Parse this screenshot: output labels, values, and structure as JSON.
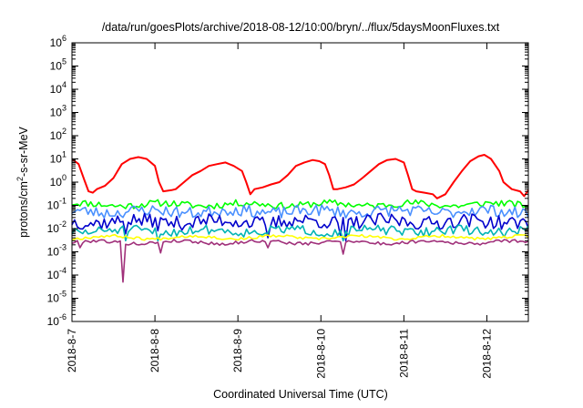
{
  "chart_data": {
    "type": "line",
    "title": "/data/run/goesPlots/archive/2018-08-12/10:00/bryn/../flux/5daysMoonFluxes.txt",
    "xlabel": "Coordinated Universal Time (UTC)",
    "ylabel": "protons/cm²-s-sr-MeV",
    "ylabel_parts": {
      "pre": "protons/cm",
      "sup": "2",
      "post": "-s-sr-MeV"
    },
    "yscale": "log",
    "ylim": [
      1e-06,
      1000000.0
    ],
    "xlim": [
      0,
      5.5
    ],
    "x_units": "days since 2018-8-7",
    "y_ticks": [
      {
        "exp": -6,
        "label": "10",
        "sup": "-6"
      },
      {
        "exp": -5,
        "label": "10",
        "sup": "-5"
      },
      {
        "exp": -4,
        "label": "10",
        "sup": "-4"
      },
      {
        "exp": -3,
        "label": "10",
        "sup": "-3"
      },
      {
        "exp": -2,
        "label": "10",
        "sup": "-2"
      },
      {
        "exp": -1,
        "label": "10",
        "sup": "-1"
      },
      {
        "exp": 0,
        "label": "10",
        "sup": "0"
      },
      {
        "exp": 1,
        "label": "10",
        "sup": "1"
      },
      {
        "exp": 2,
        "label": "10",
        "sup": "2"
      },
      {
        "exp": 3,
        "label": "10",
        "sup": "3"
      },
      {
        "exp": 4,
        "label": "10",
        "sup": "4"
      },
      {
        "exp": 5,
        "label": "10",
        "sup": "5"
      },
      {
        "exp": 6,
        "label": "10",
        "sup": "6"
      }
    ],
    "x_ticks": [
      {
        "x": 0,
        "label": "2018-8-7"
      },
      {
        "x": 1,
        "label": "2018-8-8"
      },
      {
        "x": 2,
        "label": "2018-8-9"
      },
      {
        "x": 3,
        "label": "2018-8-10"
      },
      {
        "x": 4,
        "label": "2018-8-11"
      },
      {
        "x": 5,
        "label": "2018-8-12"
      }
    ],
    "grid": false,
    "legend": "none",
    "series": [
      {
        "color": "#ff0000",
        "points": [
          [
            0,
            10
          ],
          [
            0.08,
            6
          ],
          [
            0.15,
            1.2
          ],
          [
            0.2,
            0.4
          ],
          [
            0.25,
            0.35
          ],
          [
            0.3,
            0.5
          ],
          [
            0.4,
            0.7
          ],
          [
            0.5,
            1.5
          ],
          [
            0.55,
            3
          ],
          [
            0.6,
            6
          ],
          [
            0.7,
            10
          ],
          [
            0.8,
            12
          ],
          [
            0.9,
            10
          ],
          [
            1.0,
            5
          ],
          [
            1.05,
            1
          ],
          [
            1.1,
            0.4
          ],
          [
            1.2,
            0.45
          ],
          [
            1.25,
            0.5
          ],
          [
            1.35,
            1
          ],
          [
            1.45,
            2
          ],
          [
            1.55,
            3
          ],
          [
            1.65,
            5
          ],
          [
            1.75,
            6
          ],
          [
            1.85,
            7
          ],
          [
            1.95,
            5
          ],
          [
            2.05,
            3
          ],
          [
            2.1,
            1
          ],
          [
            2.15,
            0.3
          ],
          [
            2.2,
            0.5
          ],
          [
            2.3,
            0.6
          ],
          [
            2.4,
            0.8
          ],
          [
            2.5,
            1
          ],
          [
            2.6,
            2
          ],
          [
            2.7,
            5
          ],
          [
            2.8,
            7
          ],
          [
            2.9,
            9
          ],
          [
            2.98,
            8
          ],
          [
            3.05,
            6
          ],
          [
            3.1,
            2
          ],
          [
            3.15,
            0.5
          ],
          [
            3.2,
            0.5
          ],
          [
            3.3,
            0.6
          ],
          [
            3.4,
            0.8
          ],
          [
            3.5,
            1.5
          ],
          [
            3.6,
            3
          ],
          [
            3.7,
            6
          ],
          [
            3.8,
            9
          ],
          [
            3.9,
            10
          ],
          [
            4.0,
            7
          ],
          [
            4.05,
            2
          ],
          [
            4.1,
            0.5
          ],
          [
            4.15,
            0.4
          ],
          [
            4.25,
            0.35
          ],
          [
            4.35,
            0.3
          ],
          [
            4.4,
            0.2
          ],
          [
            4.5,
            0.3
          ],
          [
            4.6,
            1
          ],
          [
            4.7,
            3
          ],
          [
            4.8,
            8
          ],
          [
            4.9,
            13
          ],
          [
            4.97,
            15
          ],
          [
            5.05,
            10
          ],
          [
            5.15,
            3
          ],
          [
            5.2,
            1
          ],
          [
            5.3,
            0.5
          ],
          [
            5.4,
            0.4
          ],
          [
            5.45,
            0.25
          ],
          [
            5.5,
            0.45
          ]
        ]
      },
      {
        "color": "#00ff00",
        "base": 0.11,
        "jitter": 0.15,
        "seed": 11
      },
      {
        "color": "#4a90ff",
        "base": 0.055,
        "jitter": 0.25,
        "seed": 23
      },
      {
        "color": "#0000cc",
        "base": 0.02,
        "jitter": 0.3,
        "seed": 37,
        "dips": [
          [
            0.65,
            0.006
          ],
          [
            1.05,
            0.008
          ],
          [
            2.35,
            0.004
          ],
          [
            3.25,
            0.005
          ],
          [
            3.3,
            0.003
          ]
        ]
      },
      {
        "color": "#00b4b4",
        "base": 0.008,
        "jitter": 0.2,
        "seed": 51,
        "dips": [
          [
            0.65,
            0.003
          ],
          [
            1.05,
            0.003
          ],
          [
            3.28,
            0.003
          ]
        ]
      },
      {
        "color": "#ffff00",
        "base": 0.0042,
        "jitter": 0.06,
        "seed": 67
      },
      {
        "color": "#a0307a",
        "base": 0.0026,
        "jitter": 0.07,
        "seed": 79,
        "dips": [
          [
            0.1,
            0.0015
          ],
          [
            0.62,
            5e-05
          ],
          [
            1.08,
            0.0009
          ],
          [
            2.35,
            0.0015
          ],
          [
            3.28,
            0.0008
          ]
        ]
      }
    ]
  }
}
